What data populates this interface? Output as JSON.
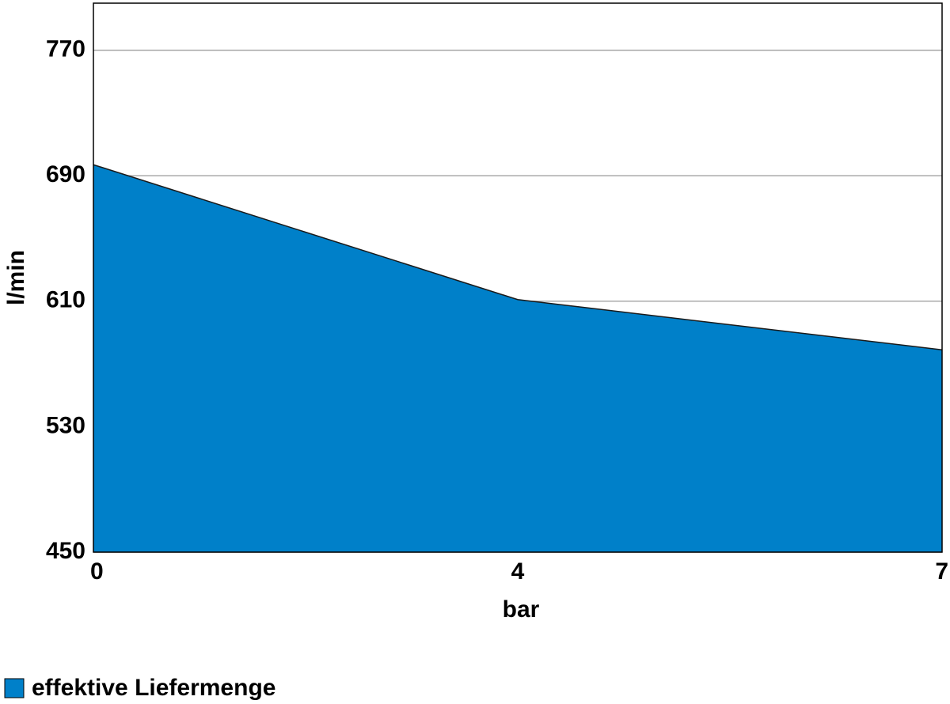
{
  "chart_data": {
    "type": "area",
    "x_label": "bar",
    "y_label": "l/min",
    "categories": [
      "0",
      "4",
      "7"
    ],
    "series": [
      {
        "name": "effektive Liefermenge",
        "color": "#0080c9",
        "values": [
          697,
          611,
          579
        ]
      }
    ],
    "ylim": [
      450,
      800
    ],
    "yticks": [
      450,
      530,
      610,
      690,
      770
    ],
    "grid": true,
    "legend": "bottom-left"
  }
}
